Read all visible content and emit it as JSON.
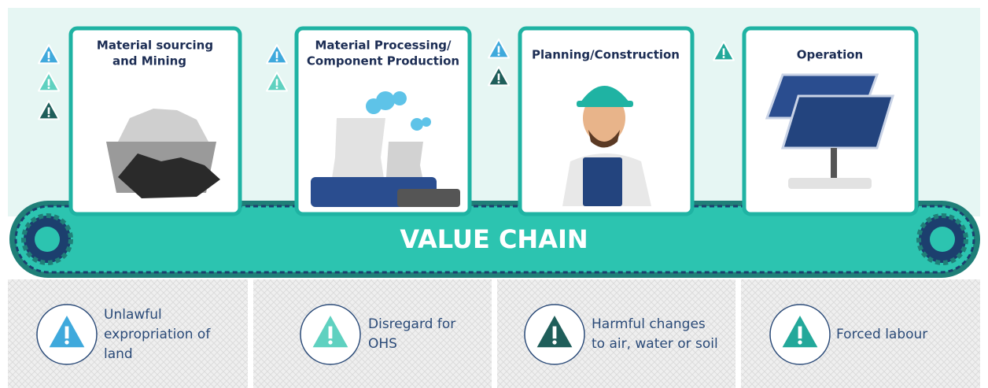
{
  "stages": [
    {
      "title": [
        "Material sourcing",
        "and  Mining"
      ]
    },
    {
      "title": [
        "Material Processing/",
        "Component Production"
      ]
    },
    {
      "title": [
        "Planning/Construction"
      ]
    },
    {
      "title": [
        "Operation"
      ]
    }
  ],
  "banner": "VALUE CHAIN",
  "risks": [
    {
      "text": [
        "Unlawful",
        "expropriation of",
        "land"
      ]
    },
    {
      "text": [
        "Disregard for",
        "OHS"
      ]
    },
    {
      "text": [
        "Harmful changes",
        "to air, water or soil"
      ]
    },
    {
      "text": [
        "Forced labour"
      ]
    }
  ]
}
